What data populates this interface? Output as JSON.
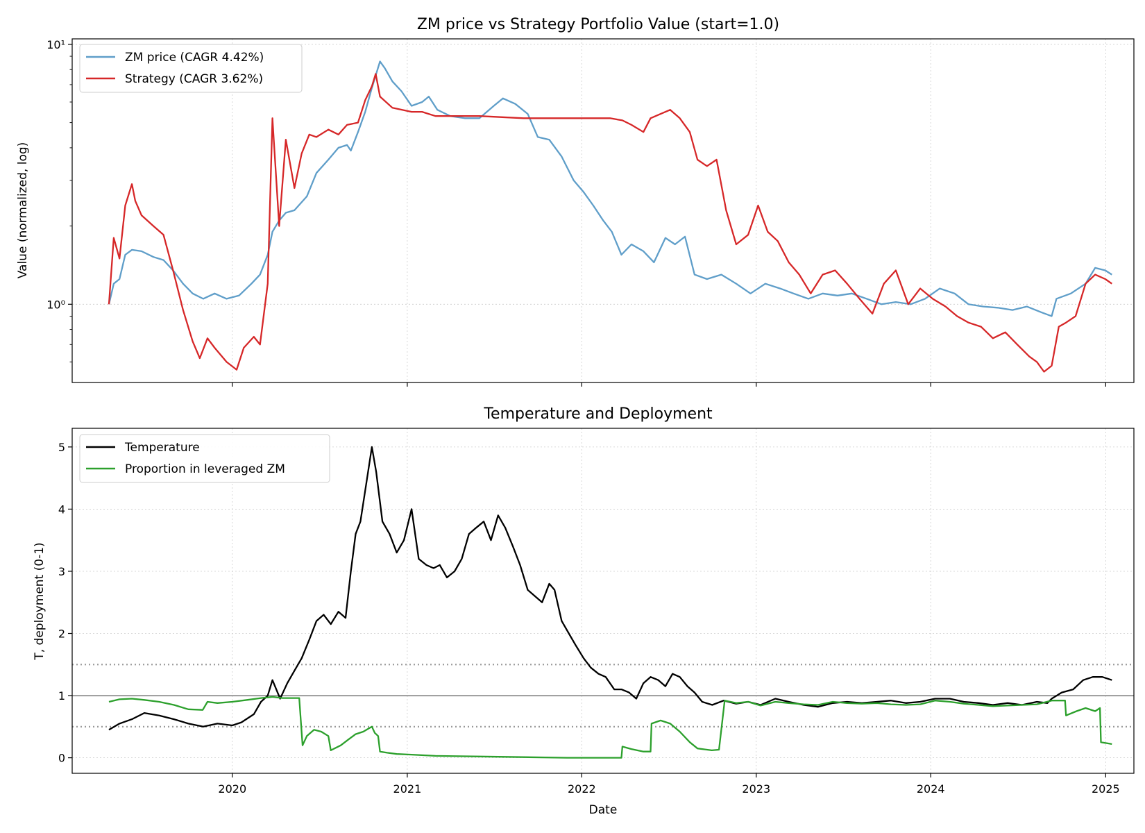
{
  "chart_data": [
    {
      "type": "line",
      "title": "ZM price vs Strategy Portfolio Value (start=1.0)",
      "xlabel": "",
      "ylabel": "Value (normalized, log)",
      "yscale": "log",
      "ylim": [
        0.5,
        10.5
      ],
      "xlim": [
        "2019-01-31",
        "2025-03-01"
      ],
      "yticks": [
        {
          "value": 1,
          "label": "10⁰"
        },
        {
          "value": 10,
          "label": "10¹"
        }
      ],
      "grid": true,
      "legend": "top-left",
      "colors": {
        "zm_price": "#5f9ec9",
        "strategy": "#d62728"
      },
      "series": [
        {
          "name": "ZM price (CAGR 4.42%)",
          "key": "zm_price",
          "x": [
            "2019-04-18",
            "2019-04-28",
            "2019-05-10",
            "2019-05-22",
            "2019-06-05",
            "2019-06-25",
            "2019-07-20",
            "2019-08-10",
            "2019-08-30",
            "2019-09-20",
            "2019-10-10",
            "2019-11-01",
            "2019-11-25",
            "2019-12-20",
            "2020-01-15",
            "2020-02-10",
            "2020-02-28",
            "2020-03-15",
            "2020-03-25",
            "2020-04-08",
            "2020-04-22",
            "2020-05-10",
            "2020-06-05",
            "2020-06-25",
            "2020-07-20",
            "2020-08-10",
            "2020-08-28",
            "2020-09-05",
            "2020-09-20",
            "2020-10-05",
            "2020-10-19",
            "2020-11-05",
            "2020-11-15",
            "2020-12-01",
            "2020-12-20",
            "2021-01-10",
            "2021-02-01",
            "2021-02-15",
            "2021-03-05",
            "2021-04-01",
            "2021-05-01",
            "2021-06-01",
            "2021-07-01",
            "2021-07-20",
            "2021-08-15",
            "2021-09-10",
            "2021-10-01",
            "2021-10-25",
            "2021-11-20",
            "2021-12-15",
            "2022-01-05",
            "2022-01-25",
            "2022-02-15",
            "2022-03-05",
            "2022-03-25",
            "2022-04-15",
            "2022-05-10",
            "2022-06-01",
            "2022-06-25",
            "2022-07-15",
            "2022-08-05",
            "2022-08-25",
            "2022-09-20",
            "2022-10-20",
            "2022-11-20",
            "2022-12-20",
            "2023-01-20",
            "2023-02-20",
            "2023-03-20",
            "2023-04-20",
            "2023-05-20",
            "2023-06-20",
            "2023-07-20",
            "2023-08-20",
            "2023-09-20",
            "2023-10-20",
            "2023-11-20",
            "2023-12-20",
            "2024-01-20",
            "2024-02-20",
            "2024-03-20",
            "2024-04-20",
            "2024-05-20",
            "2024-06-20",
            "2024-07-20",
            "2024-08-20",
            "2024-09-10",
            "2024-09-20",
            "2024-10-20",
            "2024-11-20",
            "2024-12-10",
            "2024-12-31",
            "2025-01-14"
          ],
          "values": [
            1.0,
            1.2,
            1.25,
            1.55,
            1.62,
            1.6,
            1.52,
            1.48,
            1.35,
            1.2,
            1.1,
            1.05,
            1.1,
            1.05,
            1.08,
            1.2,
            1.3,
            1.55,
            1.9,
            2.1,
            2.25,
            2.3,
            2.6,
            3.2,
            3.6,
            4.0,
            4.1,
            3.9,
            4.6,
            5.5,
            6.8,
            8.6,
            8.1,
            7.2,
            6.6,
            5.8,
            6.0,
            6.3,
            5.6,
            5.3,
            5.2,
            5.2,
            5.8,
            6.2,
            5.9,
            5.4,
            4.4,
            4.3,
            3.7,
            3.0,
            2.7,
            2.4,
            2.1,
            1.9,
            1.55,
            1.7,
            1.6,
            1.45,
            1.8,
            1.7,
            1.82,
            1.3,
            1.25,
            1.3,
            1.2,
            1.1,
            1.2,
            1.15,
            1.1,
            1.05,
            1.1,
            1.08,
            1.1,
            1.05,
            1.0,
            1.02,
            1.0,
            1.05,
            1.15,
            1.1,
            1.0,
            0.98,
            0.97,
            0.95,
            0.98,
            0.93,
            0.9,
            1.05,
            1.1,
            1.2,
            1.38,
            1.35,
            1.3
          ]
        },
        {
          "name": "Strategy (CAGR 3.62%)",
          "key": "strategy",
          "x": [
            "2019-04-18",
            "2019-04-28",
            "2019-05-10",
            "2019-05-22",
            "2019-06-05",
            "2019-06-12",
            "2019-06-25",
            "2019-07-20",
            "2019-08-10",
            "2019-08-30",
            "2019-09-20",
            "2019-10-10",
            "2019-10-25",
            "2019-11-10",
            "2019-11-25",
            "2019-12-20",
            "2020-01-10",
            "2020-01-25",
            "2020-02-15",
            "2020-02-28",
            "2020-03-15",
            "2020-03-25",
            "2020-04-08",
            "2020-04-22",
            "2020-05-10",
            "2020-05-25",
            "2020-06-10",
            "2020-06-25",
            "2020-07-20",
            "2020-08-10",
            "2020-08-28",
            "2020-09-20",
            "2020-10-05",
            "2020-10-19",
            "2020-10-27",
            "2020-11-05",
            "2020-12-01",
            "2021-01-10",
            "2021-02-01",
            "2021-03-01",
            "2021-06-01",
            "2021-09-01",
            "2021-12-01",
            "2022-03-01",
            "2022-03-27",
            "2022-04-15",
            "2022-05-10",
            "2022-05-25",
            "2022-06-15",
            "2022-07-05",
            "2022-07-25",
            "2022-08-15",
            "2022-08-31",
            "2022-09-20",
            "2022-10-10",
            "2022-10-30",
            "2022-11-20",
            "2022-12-15",
            "2023-01-05",
            "2023-01-25",
            "2023-02-15",
            "2023-03-10",
            "2023-04-01",
            "2023-04-25",
            "2023-05-20",
            "2023-06-15",
            "2023-07-10",
            "2023-08-05",
            "2023-09-01",
            "2023-09-25",
            "2023-10-20",
            "2023-11-15",
            "2023-12-10",
            "2024-01-05",
            "2024-02-01",
            "2024-02-25",
            "2024-03-20",
            "2024-04-15",
            "2024-05-10",
            "2024-06-05",
            "2024-06-30",
            "2024-07-25",
            "2024-08-10",
            "2024-08-25",
            "2024-09-10",
            "2024-09-25",
            "2024-10-10",
            "2024-10-30",
            "2024-11-20",
            "2024-12-10",
            "2024-12-31",
            "2025-01-14"
          ],
          "values": [
            1.0,
            1.8,
            1.5,
            2.4,
            2.9,
            2.5,
            2.2,
            2.0,
            1.85,
            1.35,
            0.95,
            0.72,
            0.62,
            0.74,
            0.68,
            0.6,
            0.56,
            0.68,
            0.75,
            0.7,
            1.2,
            5.2,
            2.0,
            4.3,
            2.8,
            3.8,
            4.5,
            4.4,
            4.7,
            4.5,
            4.9,
            5.0,
            6.1,
            6.9,
            7.7,
            6.3,
            5.7,
            5.5,
            5.5,
            5.3,
            5.3,
            5.2,
            5.2,
            5.2,
            5.1,
            4.9,
            4.6,
            5.2,
            5.4,
            5.6,
            5.2,
            4.6,
            3.6,
            3.4,
            3.6,
            2.3,
            1.7,
            1.85,
            2.4,
            1.9,
            1.75,
            1.45,
            1.3,
            1.1,
            1.3,
            1.35,
            1.2,
            1.05,
            0.92,
            1.2,
            1.35,
            1.0,
            1.15,
            1.05,
            0.98,
            0.9,
            0.85,
            0.82,
            0.74,
            0.78,
            0.7,
            0.63,
            0.6,
            0.55,
            0.58,
            0.82,
            0.85,
            0.9,
            1.2,
            1.3,
            1.25,
            1.2
          ]
        }
      ]
    },
    {
      "type": "line",
      "title": "Temperature and Deployment",
      "xlabel": "Date",
      "ylabel": "T, deployment (0-1)",
      "ylim": [
        -0.25,
        5.3
      ],
      "xlim": [
        "2019-01-31",
        "2025-03-01"
      ],
      "yticks": [
        0,
        1,
        2,
        3,
        4,
        5
      ],
      "xticks": [
        {
          "x": "2020-01-01",
          "label": "2020"
        },
        {
          "x": "2021-01-01",
          "label": "2021"
        },
        {
          "x": "2022-01-01",
          "label": "2022"
        },
        {
          "x": "2023-01-01",
          "label": "2023"
        },
        {
          "x": "2024-01-01",
          "label": "2024"
        },
        {
          "x": "2025-01-01",
          "label": "2025"
        }
      ],
      "grid": true,
      "legend": "top-left",
      "reference_lines": [
        {
          "y": 1.0,
          "style": "solid",
          "color": "#999999"
        },
        {
          "y": 1.5,
          "style": "dotted",
          "color": "#999999"
        },
        {
          "y": 0.5,
          "style": "dotted",
          "color": "#999999"
        }
      ],
      "colors": {
        "temperature": "#000000",
        "deployment": "#2ca02c"
      },
      "series": [
        {
          "name": "Temperature",
          "key": "temperature",
          "x": [
            "2019-04-18",
            "2019-05-10",
            "2019-06-05",
            "2019-07-01",
            "2019-08-01",
            "2019-09-01",
            "2019-10-01",
            "2019-11-01",
            "2019-12-01",
            "2020-01-01",
            "2020-01-20",
            "2020-02-15",
            "2020-03-01",
            "2020-03-15",
            "2020-03-25",
            "2020-04-10",
            "2020-04-25",
            "2020-05-10",
            "2020-05-25",
            "2020-06-10",
            "2020-06-25",
            "2020-07-10",
            "2020-07-25",
            "2020-08-10",
            "2020-08-25",
            "2020-09-05",
            "2020-09-15",
            "2020-09-25",
            "2020-10-05",
            "2020-10-19",
            "2020-10-28",
            "2020-11-10",
            "2020-11-25",
            "2020-12-10",
            "2020-12-25",
            "2021-01-10",
            "2021-01-25",
            "2021-02-10",
            "2021-02-25",
            "2021-03-10",
            "2021-03-25",
            "2021-04-10",
            "2021-04-25",
            "2021-05-10",
            "2021-05-25",
            "2021-06-10",
            "2021-06-25",
            "2021-07-10",
            "2021-07-25",
            "2021-08-10",
            "2021-08-25",
            "2021-09-10",
            "2021-09-25",
            "2021-10-10",
            "2021-10-25",
            "2021-11-05",
            "2021-11-20",
            "2021-12-05",
            "2021-12-20",
            "2022-01-05",
            "2022-01-20",
            "2022-02-05",
            "2022-02-20",
            "2022-03-10",
            "2022-03-25",
            "2022-04-10",
            "2022-04-25",
            "2022-05-10",
            "2022-05-25",
            "2022-06-10",
            "2022-06-25",
            "2022-07-10",
            "2022-07-25",
            "2022-08-10",
            "2022-08-25",
            "2022-09-10",
            "2022-10-01",
            "2022-10-25",
            "2022-11-20",
            "2022-12-15",
            "2023-01-10",
            "2023-02-10",
            "2023-03-10",
            "2023-04-10",
            "2023-05-10",
            "2023-06-10",
            "2023-07-10",
            "2023-08-10",
            "2023-09-10",
            "2023-10-10",
            "2023-11-10",
            "2023-12-10",
            "2024-01-10",
            "2024-02-10",
            "2024-03-10",
            "2024-04-10",
            "2024-05-10",
            "2024-06-10",
            "2024-07-10",
            "2024-08-10",
            "2024-09-01",
            "2024-09-10",
            "2024-10-01",
            "2024-10-25",
            "2024-11-15",
            "2024-12-05",
            "2024-12-25",
            "2025-01-14"
          ],
          "values": [
            0.45,
            0.55,
            0.62,
            0.72,
            0.68,
            0.62,
            0.55,
            0.5,
            0.55,
            0.52,
            0.57,
            0.7,
            0.9,
            1.0,
            1.25,
            0.95,
            1.2,
            1.4,
            1.6,
            1.9,
            2.2,
            2.3,
            2.15,
            2.35,
            2.25,
            3.0,
            3.6,
            3.8,
            4.3,
            5.0,
            4.6,
            3.8,
            3.6,
            3.3,
            3.5,
            4.0,
            3.2,
            3.1,
            3.05,
            3.1,
            2.9,
            3.0,
            3.2,
            3.6,
            3.7,
            3.8,
            3.5,
            3.9,
            3.7,
            3.4,
            3.1,
            2.7,
            2.6,
            2.5,
            2.8,
            2.7,
            2.2,
            2.0,
            1.8,
            1.6,
            1.45,
            1.35,
            1.3,
            1.1,
            1.1,
            1.05,
            0.95,
            1.2,
            1.3,
            1.25,
            1.15,
            1.35,
            1.3,
            1.15,
            1.05,
            0.9,
            0.85,
            0.92,
            0.87,
            0.9,
            0.85,
            0.95,
            0.9,
            0.85,
            0.82,
            0.88,
            0.9,
            0.88,
            0.9,
            0.92,
            0.88,
            0.9,
            0.95,
            0.95,
            0.9,
            0.88,
            0.85,
            0.88,
            0.85,
            0.9,
            0.88,
            0.95,
            1.05,
            1.1,
            1.25,
            1.3,
            1.3,
            1.25
          ]
        },
        {
          "name": "Proportion in leveraged ZM",
          "key": "deployment",
          "x": [
            "2019-04-18",
            "2019-05-10",
            "2019-06-05",
            "2019-07-01",
            "2019-08-01",
            "2019-09-01",
            "2019-10-01",
            "2019-10-31",
            "2019-11-10",
            "2019-12-01",
            "2020-01-01",
            "2020-02-01",
            "2020-03-01",
            "2020-03-15",
            "2020-03-25",
            "2020-04-15",
            "2020-05-20",
            "2020-05-27",
            "2020-06-05",
            "2020-06-20",
            "2020-07-05",
            "2020-07-20",
            "2020-07-25",
            "2020-08-15",
            "2020-09-01",
            "2020-09-15",
            "2020-10-01",
            "2020-10-19",
            "2020-10-25",
            "2020-11-01",
            "2020-11-05",
            "2020-11-20",
            "2020-12-10",
            "2021-01-10",
            "2021-03-01",
            "2021-06-01",
            "2021-09-01",
            "2021-12-01",
            "2022-03-25",
            "2022-03-27",
            "2022-04-15",
            "2022-05-10",
            "2022-05-25",
            "2022-05-27",
            "2022-06-15",
            "2022-07-05",
            "2022-07-25",
            "2022-08-15",
            "2022-08-31",
            "2022-09-30",
            "2022-10-15",
            "2022-10-27",
            "2022-11-20",
            "2022-12-15",
            "2023-01-10",
            "2023-02-10",
            "2023-03-10",
            "2023-04-10",
            "2023-05-10",
            "2023-06-10",
            "2023-07-10",
            "2023-08-10",
            "2023-09-10",
            "2023-10-10",
            "2023-11-10",
            "2023-12-10",
            "2024-01-10",
            "2024-02-10",
            "2024-03-10",
            "2024-04-10",
            "2024-05-10",
            "2024-06-10",
            "2024-07-10",
            "2024-08-10",
            "2024-09-10",
            "2024-10-08",
            "2024-10-10",
            "2024-11-01",
            "2024-11-20",
            "2024-12-10",
            "2024-12-20",
            "2024-12-22",
            "2025-01-14"
          ],
          "values": [
            0.9,
            0.94,
            0.95,
            0.93,
            0.9,
            0.85,
            0.78,
            0.77,
            0.9,
            0.88,
            0.9,
            0.93,
            0.96,
            0.97,
            0.98,
            0.96,
            0.96,
            0.2,
            0.35,
            0.45,
            0.42,
            0.35,
            0.12,
            0.2,
            0.3,
            0.38,
            0.42,
            0.5,
            0.4,
            0.35,
            0.1,
            0.08,
            0.06,
            0.05,
            0.03,
            0.02,
            0.01,
            0.0,
            0.0,
            0.18,
            0.14,
            0.1,
            0.1,
            0.55,
            0.6,
            0.55,
            0.42,
            0.25,
            0.15,
            0.12,
            0.13,
            0.92,
            0.88,
            0.9,
            0.84,
            0.9,
            0.88,
            0.86,
            0.85,
            0.9,
            0.88,
            0.87,
            0.88,
            0.86,
            0.85,
            0.86,
            0.92,
            0.9,
            0.87,
            0.85,
            0.83,
            0.84,
            0.85,
            0.86,
            0.92,
            0.92,
            0.68,
            0.75,
            0.8,
            0.75,
            0.8,
            0.25,
            0.22
          ]
        }
      ]
    }
  ]
}
